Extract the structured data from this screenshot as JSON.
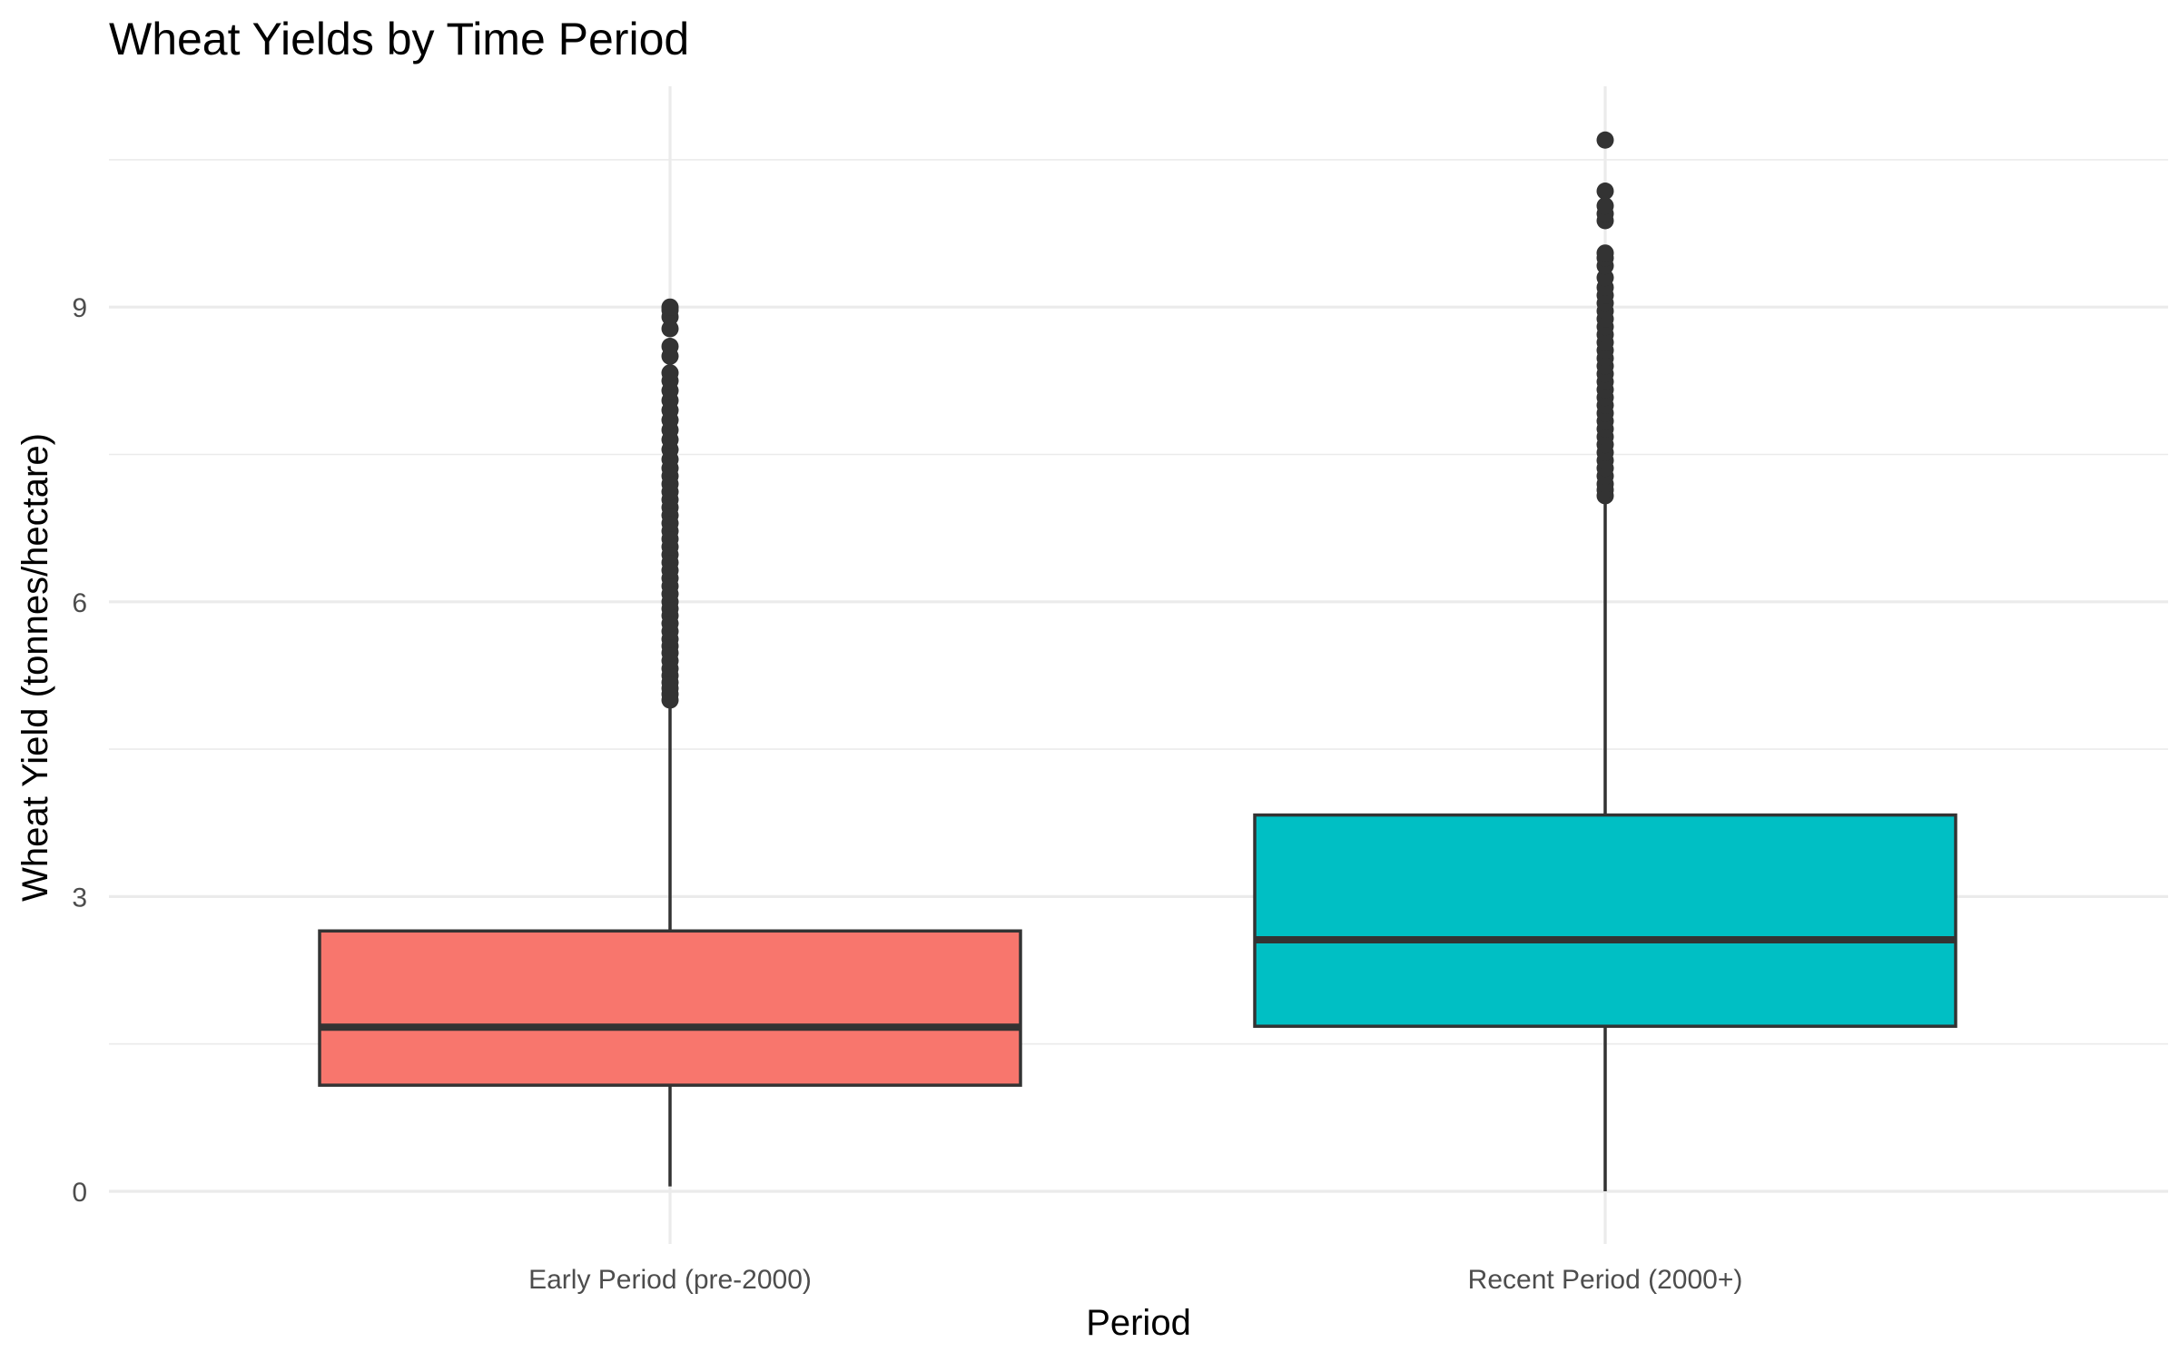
{
  "chart_data": {
    "type": "boxplot",
    "title": "Wheat Yields by Time Period",
    "xlabel": "Period",
    "ylabel": "Wheat Yield (tonnes/hectare)",
    "ylim": [
      -0.2,
      11.1
    ],
    "yticks": [
      0,
      3,
      6,
      9
    ],
    "grid": true,
    "legend": "none",
    "categories": [
      "Early Period (pre-2000)",
      "Recent Period (2000+)"
    ],
    "boxes": [
      {
        "category": "Early Period (pre-2000)",
        "color": "#F8766D",
        "whisker_low": 0.05,
        "q1": 1.08,
        "median": 1.67,
        "q3": 2.65,
        "whisker_high": 5.0,
        "outliers": [
          5.0,
          5.06,
          5.12,
          5.18,
          5.25,
          5.32,
          5.4,
          5.48,
          5.55,
          5.62,
          5.7,
          5.78,
          5.86,
          5.93,
          6.0,
          6.08,
          6.16,
          6.24,
          6.32,
          6.4,
          6.48,
          6.56,
          6.64,
          6.72,
          6.8,
          6.88,
          6.96,
          7.04,
          7.12,
          7.2,
          7.28,
          7.36,
          7.45,
          7.55,
          7.65,
          7.75,
          7.85,
          7.95,
          8.05,
          8.15,
          8.25,
          8.33,
          8.5,
          8.6,
          8.78,
          8.9,
          8.97,
          9.0
        ]
      },
      {
        "category": "Recent Period (2000+)",
        "color": "#00BFC4",
        "whisker_low": 0.0,
        "q1": 1.68,
        "median": 2.56,
        "q3": 3.83,
        "whisker_high": 7.05,
        "outliers": [
          7.08,
          7.14,
          7.2,
          7.28,
          7.36,
          7.44,
          7.52,
          7.6,
          7.68,
          7.76,
          7.84,
          7.92,
          8.0,
          8.08,
          8.16,
          8.24,
          8.32,
          8.4,
          8.48,
          8.56,
          8.64,
          8.72,
          8.8,
          8.88,
          8.96,
          9.04,
          9.12,
          9.2,
          9.3,
          9.42,
          9.5,
          9.55,
          9.88,
          9.95,
          10.03,
          10.18,
          10.7
        ]
      }
    ]
  }
}
